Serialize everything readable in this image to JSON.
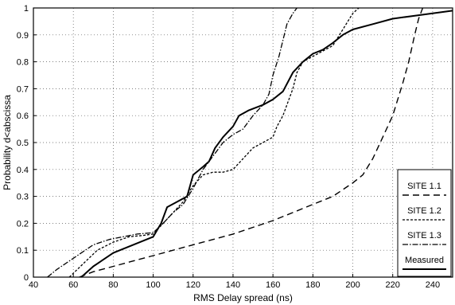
{
  "chart_data": {
    "type": "line",
    "title": "",
    "xlabel": "RMS Delay spread (ns)",
    "ylabel": "Probability d<abscissa",
    "xlim": [
      40,
      250
    ],
    "ylim": [
      0,
      1
    ],
    "x_ticks": [
      40,
      60,
      80,
      100,
      120,
      140,
      160,
      180,
      200,
      220,
      240
    ],
    "y_ticks": [
      0,
      0.1,
      0.2,
      0.3,
      0.4,
      0.5,
      0.6,
      0.7,
      0.8,
      0.9,
      1
    ],
    "grid": true,
    "legend_position": "bottom-right",
    "series": [
      {
        "name": "SITE 1.1",
        "dash": "8 5",
        "width": 1.4,
        "points": [
          [
            63,
            0
          ],
          [
            70,
            0.02
          ],
          [
            80,
            0.04
          ],
          [
            90,
            0.06
          ],
          [
            100,
            0.08
          ],
          [
            110,
            0.1
          ],
          [
            120,
            0.12
          ],
          [
            130,
            0.14
          ],
          [
            140,
            0.16
          ],
          [
            150,
            0.185
          ],
          [
            160,
            0.21
          ],
          [
            170,
            0.24
          ],
          [
            180,
            0.27
          ],
          [
            190,
            0.3
          ],
          [
            200,
            0.35
          ],
          [
            205,
            0.38
          ],
          [
            210,
            0.44
          ],
          [
            215,
            0.52
          ],
          [
            220,
            0.6
          ],
          [
            225,
            0.72
          ],
          [
            228,
            0.8
          ],
          [
            231,
            0.9
          ],
          [
            233,
            0.96
          ],
          [
            235,
            1.0
          ]
        ]
      },
      {
        "name": "SITE 1.2",
        "dash": "3 2",
        "width": 1.3,
        "points": [
          [
            58,
            0
          ],
          [
            65,
            0.05
          ],
          [
            72,
            0.1
          ],
          [
            80,
            0.13
          ],
          [
            88,
            0.15
          ],
          [
            95,
            0.155
          ],
          [
            100,
            0.16
          ],
          [
            105,
            0.2
          ],
          [
            110,
            0.24
          ],
          [
            115,
            0.28
          ],
          [
            120,
            0.34
          ],
          [
            125,
            0.38
          ],
          [
            130,
            0.39
          ],
          [
            135,
            0.39
          ],
          [
            140,
            0.4
          ],
          [
            145,
            0.44
          ],
          [
            150,
            0.48
          ],
          [
            155,
            0.5
          ],
          [
            160,
            0.52
          ],
          [
            162,
            0.56
          ],
          [
            165,
            0.6
          ],
          [
            168,
            0.66
          ],
          [
            170,
            0.7
          ],
          [
            172,
            0.76
          ],
          [
            175,
            0.8
          ],
          [
            180,
            0.82
          ],
          [
            185,
            0.84
          ],
          [
            190,
            0.86
          ],
          [
            195,
            0.92
          ],
          [
            200,
            0.98
          ],
          [
            203,
            1.0
          ]
        ]
      },
      {
        "name": "SITE 1.3",
        "dash": "7 2 1.5 2",
        "width": 1.3,
        "points": [
          [
            47,
            0
          ],
          [
            52,
            0.03
          ],
          [
            58,
            0.06
          ],
          [
            64,
            0.09
          ],
          [
            70,
            0.12
          ],
          [
            78,
            0.14
          ],
          [
            85,
            0.15
          ],
          [
            92,
            0.16
          ],
          [
            100,
            0.165
          ],
          [
            105,
            0.2
          ],
          [
            110,
            0.24
          ],
          [
            115,
            0.27
          ],
          [
            120,
            0.33
          ],
          [
            125,
            0.4
          ],
          [
            130,
            0.45
          ],
          [
            135,
            0.5
          ],
          [
            140,
            0.53
          ],
          [
            145,
            0.55
          ],
          [
            150,
            0.6
          ],
          [
            155,
            0.64
          ],
          [
            158,
            0.68
          ],
          [
            160,
            0.75
          ],
          [
            163,
            0.82
          ],
          [
            165,
            0.88
          ],
          [
            167,
            0.94
          ],
          [
            170,
            0.98
          ],
          [
            172,
            1.0
          ]
        ]
      },
      {
        "name": "Measured",
        "dash": "",
        "width": 2.0,
        "points": [
          [
            64,
            0
          ],
          [
            70,
            0.04
          ],
          [
            80,
            0.09
          ],
          [
            90,
            0.12
          ],
          [
            100,
            0.15
          ],
          [
            104,
            0.2
          ],
          [
            107,
            0.26
          ],
          [
            112,
            0.28
          ],
          [
            117,
            0.3
          ],
          [
            120,
            0.38
          ],
          [
            125,
            0.41
          ],
          [
            128,
            0.43
          ],
          [
            131,
            0.48
          ],
          [
            135,
            0.52
          ],
          [
            140,
            0.56
          ],
          [
            143,
            0.6
          ],
          [
            148,
            0.62
          ],
          [
            155,
            0.64
          ],
          [
            160,
            0.66
          ],
          [
            165,
            0.69
          ],
          [
            170,
            0.76
          ],
          [
            175,
            0.8
          ],
          [
            180,
            0.83
          ],
          [
            185,
            0.845
          ],
          [
            190,
            0.87
          ],
          [
            195,
            0.9
          ],
          [
            200,
            0.92
          ],
          [
            210,
            0.94
          ],
          [
            220,
            0.96
          ],
          [
            230,
            0.97
          ],
          [
            240,
            0.98
          ],
          [
            250,
            0.99
          ]
        ]
      }
    ]
  }
}
